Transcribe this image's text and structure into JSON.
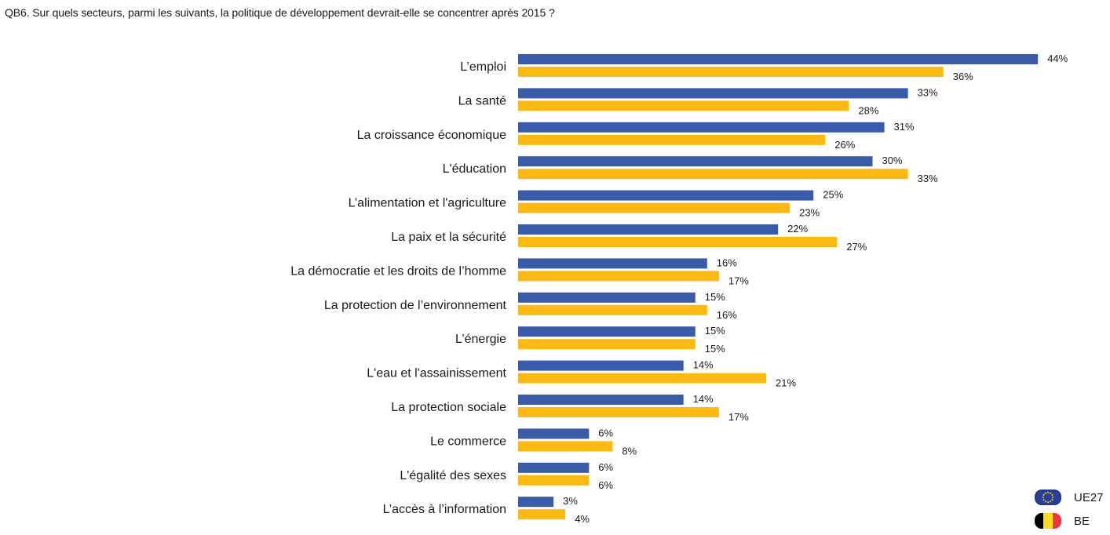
{
  "question": "QB6. Sur quels secteurs, parmi les suivants, la politique de développement devrait-elle se concentrer après 2015 ?",
  "colors": {
    "ue27": "#3a5ba7",
    "be": "#fcb813"
  },
  "legend": {
    "items": [
      {
        "label": "UE27",
        "icon": "eu-flag-icon"
      },
      {
        "label": "BE",
        "icon": "belgium-flag-icon"
      }
    ]
  },
  "chart_data": {
    "type": "bar",
    "orientation": "horizontal",
    "categories": [
      "L’emploi",
      "La santé",
      "La croissance économique",
      "L'éducation",
      "L’alimentation et l'agriculture",
      "La paix et la sécurité",
      "La démocratie et les droits de l’homme",
      "La protection de l’environnement",
      "L’énergie",
      "L'eau et l'assainissement",
      "La protection sociale",
      "Le commerce",
      "L'égalité des sexes",
      "L’accès à l’information"
    ],
    "series": [
      {
        "name": "UE27",
        "color": "#3a5ba7",
        "values": [
          44,
          33,
          31,
          30,
          25,
          22,
          16,
          15,
          15,
          14,
          14,
          6,
          6,
          3
        ]
      },
      {
        "name": "BE",
        "color": "#fcb813",
        "values": [
          36,
          28,
          26,
          33,
          23,
          27,
          17,
          16,
          15,
          21,
          17,
          8,
          6,
          4
        ]
      }
    ],
    "value_suffix": "%",
    "xlim": [
      0,
      44
    ],
    "grid": false,
    "legend_position": "bottom-right"
  }
}
